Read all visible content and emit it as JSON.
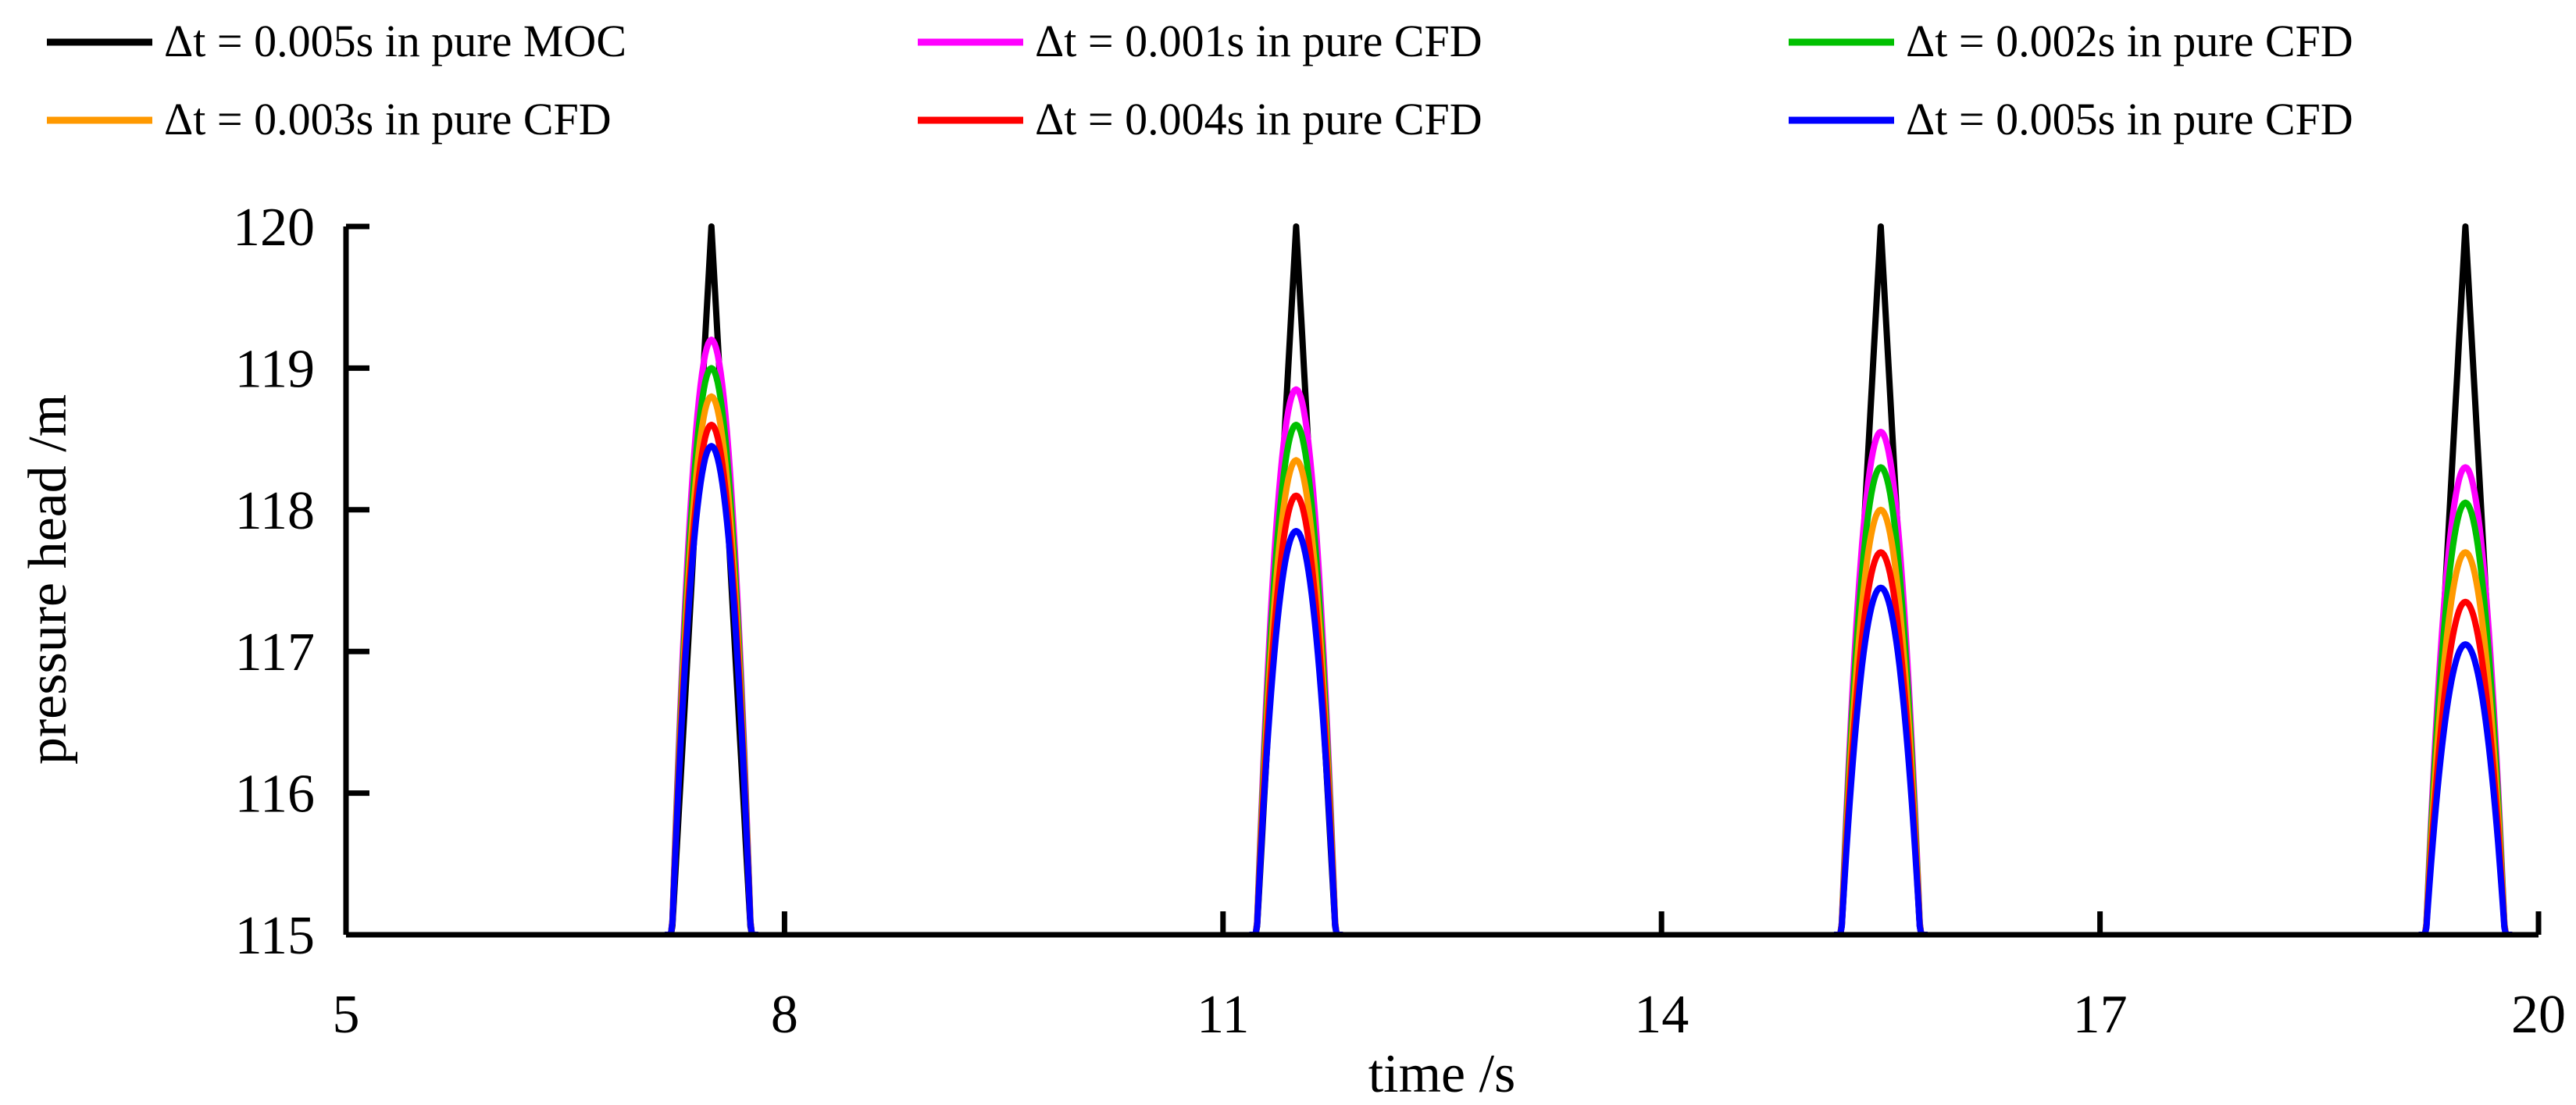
{
  "chart_data": {
    "type": "line",
    "title": "",
    "xlabel": "time /s",
    "ylabel": "pressure head /m",
    "xlim": [
      5,
      20
    ],
    "ylim": [
      115,
      120
    ],
    "xticks": [
      5,
      8,
      11,
      14,
      17,
      20
    ],
    "yticks": [
      115,
      116,
      117,
      118,
      119,
      120
    ],
    "xtick_labels": [
      "5",
      "8",
      "11",
      "14",
      "17",
      "20"
    ],
    "ytick_labels": [
      "115",
      "116",
      "117",
      "118",
      "119",
      "120"
    ],
    "grid": false,
    "legend_position": "top",
    "peak_times": [
      7.5,
      11.5,
      15.5,
      19.5
    ],
    "base_half_width": 0.27,
    "series": [
      {
        "name": "Δt = 0.005s in pure MOC",
        "color": "#000000",
        "shape": "sharp",
        "peaks": [
          120.0,
          120.0,
          120.0,
          120.0
        ]
      },
      {
        "name": "Δt = 0.001s in pure CFD",
        "color": "#ff00ff",
        "shape": "round",
        "peaks": [
          119.2,
          118.85,
          118.55,
          118.3
        ]
      },
      {
        "name": "Δt = 0.002s in pure CFD",
        "color": "#00c000",
        "shape": "round",
        "peaks": [
          119.0,
          118.6,
          118.3,
          118.05
        ]
      },
      {
        "name": "Δt = 0.003s in pure CFD",
        "color": "#ff9900",
        "shape": "round",
        "peaks": [
          118.8,
          118.35,
          118.0,
          117.7
        ]
      },
      {
        "name": "Δt = 0.004s in pure CFD",
        "color": "#ff0000",
        "shape": "round",
        "peaks": [
          118.6,
          118.1,
          117.7,
          117.35
        ]
      },
      {
        "name": "Δt = 0.005s in pure CFD",
        "color": "#0000ff",
        "shape": "round",
        "peaks": [
          118.45,
          117.85,
          117.45,
          117.05
        ]
      }
    ]
  }
}
